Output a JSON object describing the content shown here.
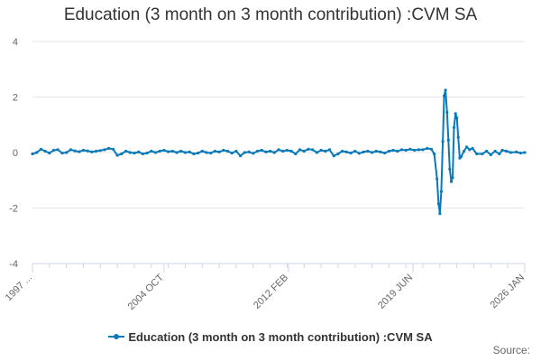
{
  "chart_data": {
    "type": "line",
    "title": "Education (3 month on 3 month contribution) :CVM SA",
    "xlabel": "",
    "ylabel": "",
    "ylim": [
      -4,
      4
    ],
    "yticks": [
      -4,
      -2,
      0,
      2,
      4
    ],
    "x_range": [
      1997.0,
      2026.0
    ],
    "xticks": [
      {
        "x": 1997.0,
        "label": "1997 ..."
      },
      {
        "x": 2004.75,
        "label": "2004 OCT"
      },
      {
        "x": 2012.083,
        "label": "2012 FEB"
      },
      {
        "x": 2019.417,
        "label": "2019 JUN"
      },
      {
        "x": 2026.0,
        "label": "2026 JAN"
      }
    ],
    "grid": true,
    "legend_position": "bottom",
    "color": "#0b7ab8",
    "series": [
      {
        "name": "Education (3 month on 3 month contribution) :CVM SA",
        "points": [
          [
            1997.0,
            -0.05
          ],
          [
            1997.25,
            0.0
          ],
          [
            1997.5,
            0.12
          ],
          [
            1997.75,
            0.05
          ],
          [
            1998.0,
            -0.02
          ],
          [
            1998.25,
            0.08
          ],
          [
            1998.5,
            0.1
          ],
          [
            1998.75,
            -0.02
          ],
          [
            1999.0,
            0.0
          ],
          [
            1999.25,
            0.1
          ],
          [
            1999.5,
            0.06
          ],
          [
            1999.75,
            0.03
          ],
          [
            2000.0,
            0.08
          ],
          [
            2000.25,
            0.06
          ],
          [
            2000.5,
            0.02
          ],
          [
            2000.75,
            0.05
          ],
          [
            2001.0,
            0.07
          ],
          [
            2001.25,
            0.1
          ],
          [
            2001.5,
            0.15
          ],
          [
            2001.75,
            0.12
          ],
          [
            2002.0,
            -0.1
          ],
          [
            2002.25,
            -0.05
          ],
          [
            2002.5,
            0.05
          ],
          [
            2002.75,
            0.0
          ],
          [
            2003.0,
            -0.02
          ],
          [
            2003.25,
            0.02
          ],
          [
            2003.5,
            -0.05
          ],
          [
            2003.75,
            -0.02
          ],
          [
            2004.0,
            0.05
          ],
          [
            2004.25,
            0.0
          ],
          [
            2004.5,
            0.05
          ],
          [
            2004.75,
            0.08
          ],
          [
            2005.0,
            0.03
          ],
          [
            2005.25,
            0.05
          ],
          [
            2005.5,
            0.0
          ],
          [
            2005.75,
            0.05
          ],
          [
            2006.0,
            0.0
          ],
          [
            2006.25,
            0.02
          ],
          [
            2006.5,
            -0.05
          ],
          [
            2006.75,
            -0.02
          ],
          [
            2007.0,
            0.05
          ],
          [
            2007.25,
            0.0
          ],
          [
            2007.5,
            -0.02
          ],
          [
            2007.75,
            0.05
          ],
          [
            2008.0,
            0.02
          ],
          [
            2008.25,
            0.08
          ],
          [
            2008.5,
            0.05
          ],
          [
            2008.75,
            -0.02
          ],
          [
            2009.0,
            0.05
          ],
          [
            2009.25,
            -0.12
          ],
          [
            2009.5,
            0.0
          ],
          [
            2009.75,
            0.02
          ],
          [
            2010.0,
            -0.03
          ],
          [
            2010.25,
            0.05
          ],
          [
            2010.5,
            0.08
          ],
          [
            2010.75,
            0.02
          ],
          [
            2011.0,
            0.05
          ],
          [
            2011.25,
            0.0
          ],
          [
            2011.5,
            0.1
          ],
          [
            2011.75,
            0.05
          ],
          [
            2012.0,
            0.08
          ],
          [
            2012.25,
            0.05
          ],
          [
            2012.5,
            -0.05
          ],
          [
            2012.75,
            0.1
          ],
          [
            2013.0,
            0.05
          ],
          [
            2013.25,
            0.12
          ],
          [
            2013.5,
            0.1
          ],
          [
            2013.75,
            0.0
          ],
          [
            2014.0,
            0.08
          ],
          [
            2014.25,
            0.05
          ],
          [
            2014.5,
            0.1
          ],
          [
            2014.75,
            -0.12
          ],
          [
            2015.0,
            -0.05
          ],
          [
            2015.25,
            0.05
          ],
          [
            2015.5,
            0.02
          ],
          [
            2015.75,
            -0.02
          ],
          [
            2016.0,
            0.05
          ],
          [
            2016.25,
            -0.03
          ],
          [
            2016.5,
            0.02
          ],
          [
            2016.75,
            0.05
          ],
          [
            2017.0,
            0.0
          ],
          [
            2017.25,
            0.05
          ],
          [
            2017.5,
            0.02
          ],
          [
            2017.75,
            -0.02
          ],
          [
            2018.0,
            0.05
          ],
          [
            2018.25,
            0.08
          ],
          [
            2018.5,
            0.05
          ],
          [
            2018.75,
            0.1
          ],
          [
            2019.0,
            0.08
          ],
          [
            2019.25,
            0.12
          ],
          [
            2019.5,
            0.08
          ],
          [
            2019.75,
            0.1
          ],
          [
            2020.0,
            0.1
          ],
          [
            2020.25,
            0.15
          ],
          [
            2020.5,
            0.12
          ],
          [
            2020.67,
            -0.05
          ],
          [
            2020.83,
            -0.95
          ],
          [
            2020.92,
            -1.85
          ],
          [
            2021.0,
            -2.2
          ],
          [
            2021.08,
            -1.4
          ],
          [
            2021.17,
            0.4
          ],
          [
            2021.25,
            2.05
          ],
          [
            2021.33,
            2.25
          ],
          [
            2021.42,
            1.45
          ],
          [
            2021.5,
            0.45
          ],
          [
            2021.58,
            -0.6
          ],
          [
            2021.67,
            -1.05
          ],
          [
            2021.75,
            -0.9
          ],
          [
            2021.83,
            0.9
          ],
          [
            2021.92,
            1.4
          ],
          [
            2022.0,
            1.25
          ],
          [
            2022.08,
            0.55
          ],
          [
            2022.17,
            -0.2
          ],
          [
            2022.25,
            -0.15
          ],
          [
            2022.42,
            0.05
          ],
          [
            2022.58,
            0.2
          ],
          [
            2022.75,
            0.1
          ],
          [
            2022.92,
            0.15
          ],
          [
            2023.17,
            -0.05
          ],
          [
            2023.5,
            -0.05
          ],
          [
            2023.75,
            0.05
          ],
          [
            2024.0,
            -0.08
          ],
          [
            2024.25,
            0.05
          ],
          [
            2024.5,
            -0.05
          ],
          [
            2024.67,
            0.08
          ],
          [
            2024.92,
            0.05
          ],
          [
            2025.17,
            0.0
          ],
          [
            2025.5,
            0.02
          ],
          [
            2025.75,
            -0.02
          ],
          [
            2026.0,
            0.0
          ]
        ]
      }
    ]
  },
  "source_label": "Source:"
}
